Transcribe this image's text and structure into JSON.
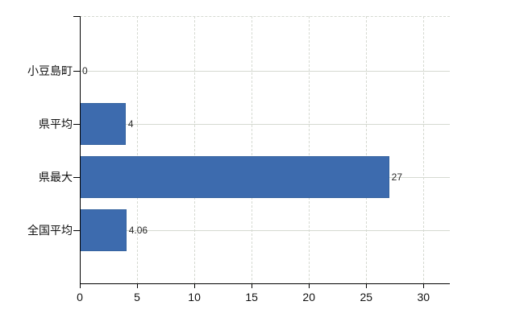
{
  "chart_data": {
    "type": "bar",
    "orientation": "horizontal",
    "categories": [
      "小豆島町",
      "県平均",
      "県最大",
      "全国平均"
    ],
    "values": [
      0,
      4,
      27,
      4.06
    ],
    "value_labels": [
      "0",
      "4",
      "27",
      "4.06"
    ],
    "xticks": [
      0,
      5,
      10,
      15,
      20,
      25,
      30
    ],
    "xlim": [
      0,
      32.3
    ],
    "grid": true,
    "legend_position": "none",
    "colors": {
      "bar_fill": "#3d6bae",
      "bar_border": "#35639f",
      "gridline": "#d5d9d1",
      "axis": "#000000",
      "label_text": "#111111",
      "value_text": "#2a2a2a",
      "background": "#ffffff"
    }
  }
}
